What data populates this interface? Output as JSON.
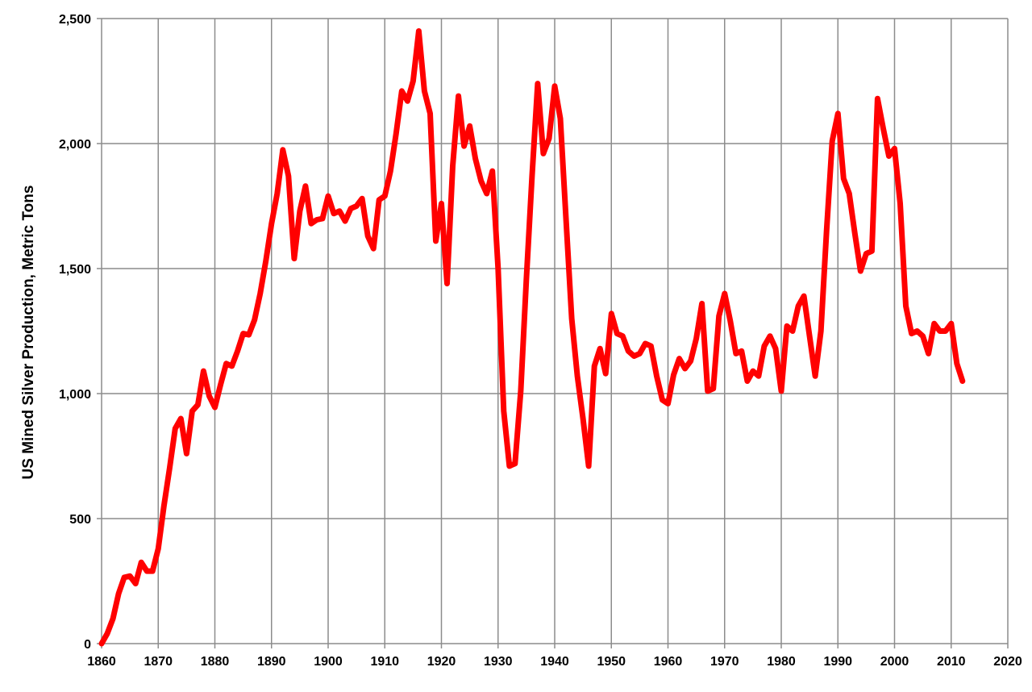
{
  "chart_data": {
    "type": "line",
    "title": "",
    "xlabel": "",
    "ylabel": "US Mined Silver Production, Metric Tons",
    "xlim": [
      1860,
      2020
    ],
    "ylim": [
      0,
      2500
    ],
    "x_ticks": [
      "1860",
      "1870",
      "1880",
      "1890",
      "1900",
      "1910",
      "1920",
      "1930",
      "1940",
      "1950",
      "1960",
      "1970",
      "1980",
      "1990",
      "2000",
      "2010",
      "2020"
    ],
    "y_ticks": [
      "0",
      "500",
      "1,000",
      "1,500",
      "2,000",
      "2,500"
    ],
    "grid": true,
    "legend": "none",
    "series": [
      {
        "color": "#ff0000",
        "x": [
          1860,
          1861,
          1862,
          1863,
          1864,
          1865,
          1866,
          1867,
          1868,
          1869,
          1870,
          1871,
          1872,
          1873,
          1874,
          1875,
          1876,
          1877,
          1878,
          1879,
          1880,
          1881,
          1882,
          1883,
          1884,
          1885,
          1886,
          1887,
          1888,
          1889,
          1890,
          1891,
          1892,
          1893,
          1894,
          1895,
          1896,
          1897,
          1898,
          1899,
          1900,
          1901,
          1902,
          1903,
          1904,
          1905,
          1906,
          1907,
          1908,
          1909,
          1910,
          1911,
          1912,
          1913,
          1914,
          1915,
          1916,
          1917,
          1918,
          1919,
          1920,
          1921,
          1922,
          1923,
          1924,
          1925,
          1926,
          1927,
          1928,
          1929,
          1930,
          1931,
          1932,
          1933,
          1934,
          1935,
          1936,
          1937,
          1938,
          1939,
          1940,
          1941,
          1942,
          1943,
          1944,
          1945,
          1946,
          1947,
          1948,
          1949,
          1950,
          1951,
          1952,
          1953,
          1954,
          1955,
          1956,
          1957,
          1958,
          1959,
          1960,
          1961,
          1962,
          1963,
          1964,
          1965,
          1966,
          1967,
          1968,
          1969,
          1970,
          1971,
          1972,
          1973,
          1974,
          1975,
          1976,
          1977,
          1978,
          1979,
          1980,
          1981,
          1982,
          1983,
          1984,
          1985,
          1986,
          1987,
          1988,
          1989,
          1990,
          1991,
          1992,
          1993,
          1994,
          1995,
          1996,
          1997,
          1998,
          1999,
          2000,
          2001,
          2002,
          2003,
          2004,
          2005,
          2006,
          2007,
          2008,
          2009,
          2010,
          2011,
          2012
        ],
        "y": [
          0,
          40,
          100,
          200,
          265,
          270,
          240,
          325,
          290,
          290,
          380,
          550,
          700,
          860,
          900,
          760,
          930,
          955,
          1090,
          990,
          945,
          1035,
          1120,
          1110,
          1170,
          1240,
          1235,
          1295,
          1400,
          1530,
          1680,
          1800,
          1975,
          1870,
          1540,
          1730,
          1830,
          1680,
          1695,
          1700,
          1790,
          1720,
          1730,
          1690,
          1740,
          1750,
          1780,
          1630,
          1580,
          1775,
          1790,
          1890,
          2040,
          2210,
          2170,
          2250,
          2450,
          2210,
          2120,
          1610,
          1760,
          1440,
          1910,
          2190,
          1990,
          2070,
          1940,
          1850,
          1800,
          1890,
          1500,
          930,
          710,
          720,
          1010,
          1460,
          1870,
          2240,
          1960,
          2020,
          2230,
          2100,
          1700,
          1300,
          1070,
          900,
          710,
          1110,
          1180,
          1080,
          1320,
          1240,
          1230,
          1170,
          1150,
          1160,
          1200,
          1190,
          1070,
          975,
          960,
          1075,
          1140,
          1100,
          1130,
          1220,
          1360,
          1010,
          1020,
          1310,
          1400,
          1290,
          1160,
          1170,
          1050,
          1090,
          1070,
          1190,
          1230,
          1180,
          1010,
          1270,
          1250,
          1350,
          1390,
          1230,
          1070,
          1250,
          1650,
          2010,
          2120,
          1860,
          1800,
          1640,
          1490,
          1560,
          1570,
          2180,
          2060,
          1950,
          1980,
          1760,
          1350,
          1240,
          1250,
          1230,
          1160,
          1280,
          1250,
          1250,
          1280,
          1120,
          1050
        ]
      }
    ]
  }
}
